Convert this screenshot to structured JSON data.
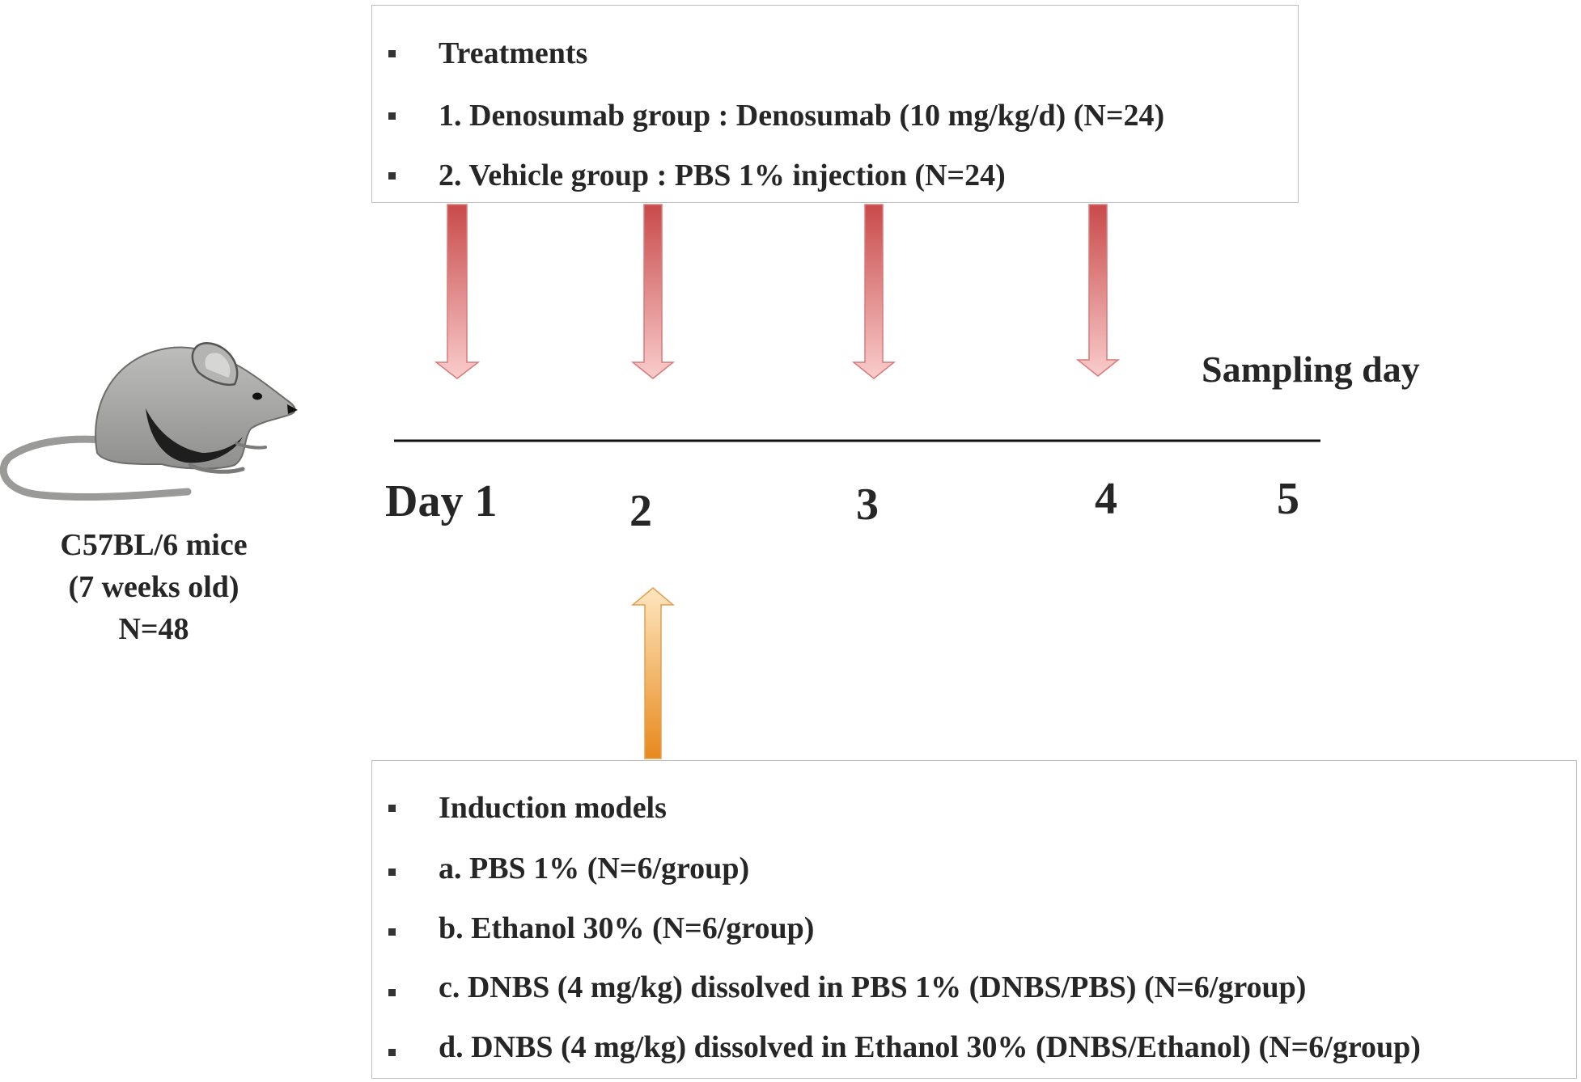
{
  "treatments": {
    "items": [
      "Treatments",
      "1.  Denosumab group : Denosumab (10 mg/kg/d) (N=24)",
      "2.  Vehicle group : PBS 1% injection (N=24)"
    ]
  },
  "induction": {
    "items": [
      "Induction models",
      "a.  PBS 1%  (N=6/group)",
      "b.  Ethanol 30% (N=6/group)",
      "c.  DNBS (4 mg/kg) dissolved in PBS 1% (DNBS/PBS) (N=6/group)",
      "d.  DNBS (4 mg/kg) dissolved in Ethanol 30% (DNBS/Ethanol) (N=6/group)"
    ]
  },
  "timeline": {
    "sampling_label": "Sampling day",
    "days": [
      "Day 1",
      "2",
      "3",
      "4",
      "5"
    ]
  },
  "subjects": {
    "line1": "C57BL/6 mice",
    "line2": "(7 weeks old)",
    "line3": "N=48"
  },
  "colors": {
    "treatment_arrow_top": "#c94a4a",
    "treatment_arrow_bottom": "#f7c6c6",
    "induction_arrow_top": "#fde3b8",
    "induction_arrow_bottom": "#e8891c",
    "mouse_body": "#a8a8a6"
  },
  "icons": {
    "mouse": "mouse-icon"
  }
}
